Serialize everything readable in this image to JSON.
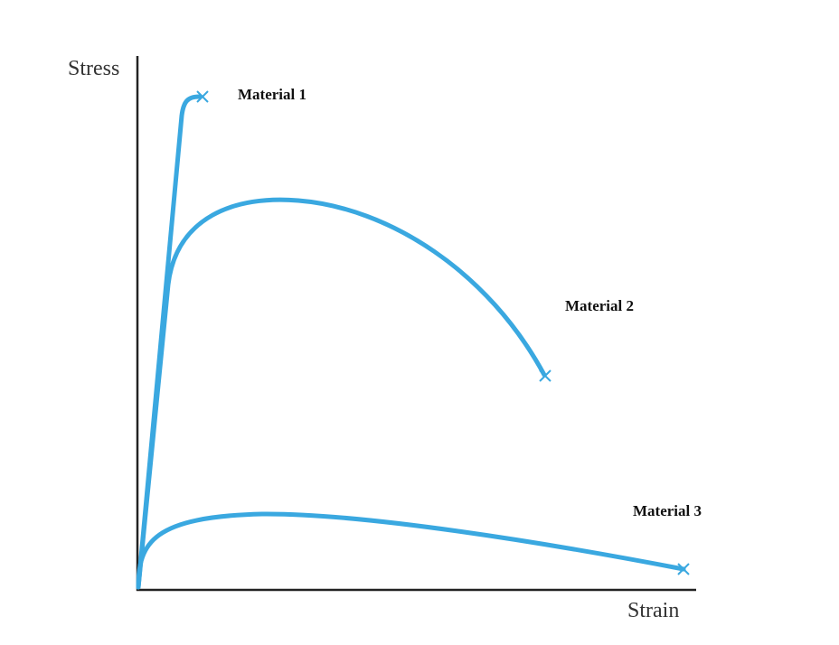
{
  "axes": {
    "y_label": "Stress",
    "x_label": "Strain"
  },
  "curves": [
    {
      "label": "Material 1"
    },
    {
      "label": "Material 2"
    },
    {
      "label": "Material 3"
    }
  ]
}
